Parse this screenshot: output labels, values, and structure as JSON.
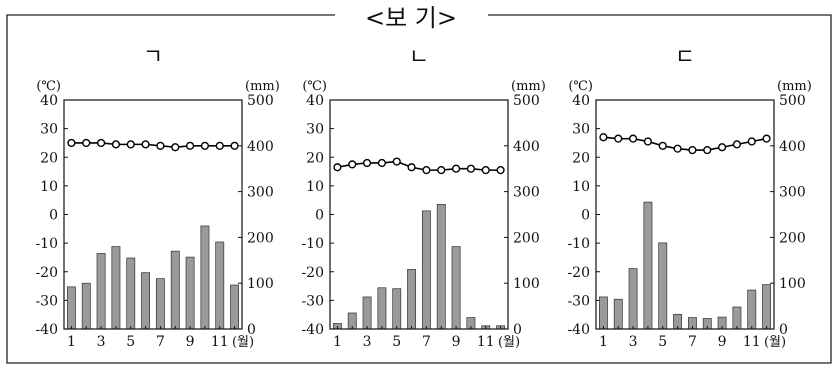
{
  "box_title": "<보 기>",
  "temp_unit": "(℃)",
  "precip_unit": "(mm)",
  "month_unit": "(월)",
  "temp_ticks": [
    "40",
    "30",
    "20",
    "10",
    "0",
    "-10",
    "-20",
    "-30",
    "-40"
  ],
  "precip_ticks": [
    "500",
    "400",
    "300",
    "200",
    "100",
    "0"
  ],
  "month_ticks": [
    "1",
    "3",
    "5",
    "7",
    "9",
    "11"
  ],
  "colors": {
    "bar": "#9a9a9a",
    "line": "#000000",
    "marker_fill": "#ffffff"
  },
  "chart_data": [
    {
      "type": "bar+line",
      "title": "ㄱ",
      "x": [
        1,
        2,
        3,
        4,
        5,
        6,
        7,
        8,
        9,
        10,
        11,
        12
      ],
      "temperature": [
        25,
        25,
        25,
        24.5,
        24.5,
        24.5,
        24,
        23.5,
        24,
        24,
        24,
        24
      ],
      "precipitation": [
        92,
        100,
        165,
        180,
        155,
        123,
        110,
        170,
        157,
        225,
        190,
        96
      ],
      "y_left": {
        "label": "(℃)",
        "range": [
          -40,
          40
        ]
      },
      "y_right": {
        "label": "(mm)",
        "range": [
          0,
          500
        ]
      }
    },
    {
      "type": "bar+line",
      "title": "ㄴ",
      "x": [
        1,
        2,
        3,
        4,
        5,
        6,
        7,
        8,
        9,
        10,
        11,
        12
      ],
      "temperature": [
        16.5,
        17.5,
        18,
        18,
        18.5,
        16.5,
        15.5,
        15.5,
        16,
        16,
        15.5,
        15.5
      ],
      "precipitation": [
        12,
        35,
        70,
        90,
        88,
        130,
        258,
        272,
        180,
        25,
        7,
        7
      ],
      "y_left": {
        "label": "(℃)",
        "range": [
          -40,
          40
        ]
      },
      "y_right": {
        "label": "(mm)",
        "range": [
          0,
          500
        ]
      }
    },
    {
      "type": "bar+line",
      "title": "ㄷ",
      "x": [
        1,
        2,
        3,
        4,
        5,
        6,
        7,
        8,
        9,
        10,
        11,
        12
      ],
      "temperature": [
        27,
        26.5,
        26.5,
        25.5,
        24,
        23,
        22.5,
        22.5,
        23.5,
        24.5,
        25.5,
        26.5
      ],
      "precipitation": [
        70,
        65,
        132,
        277,
        188,
        32,
        25,
        23,
        26,
        48,
        85,
        97
      ],
      "y_left": {
        "label": "(℃)",
        "range": [
          -40,
          40
        ]
      },
      "y_right": {
        "label": "(mm)",
        "range": [
          0,
          500
        ]
      }
    }
  ]
}
